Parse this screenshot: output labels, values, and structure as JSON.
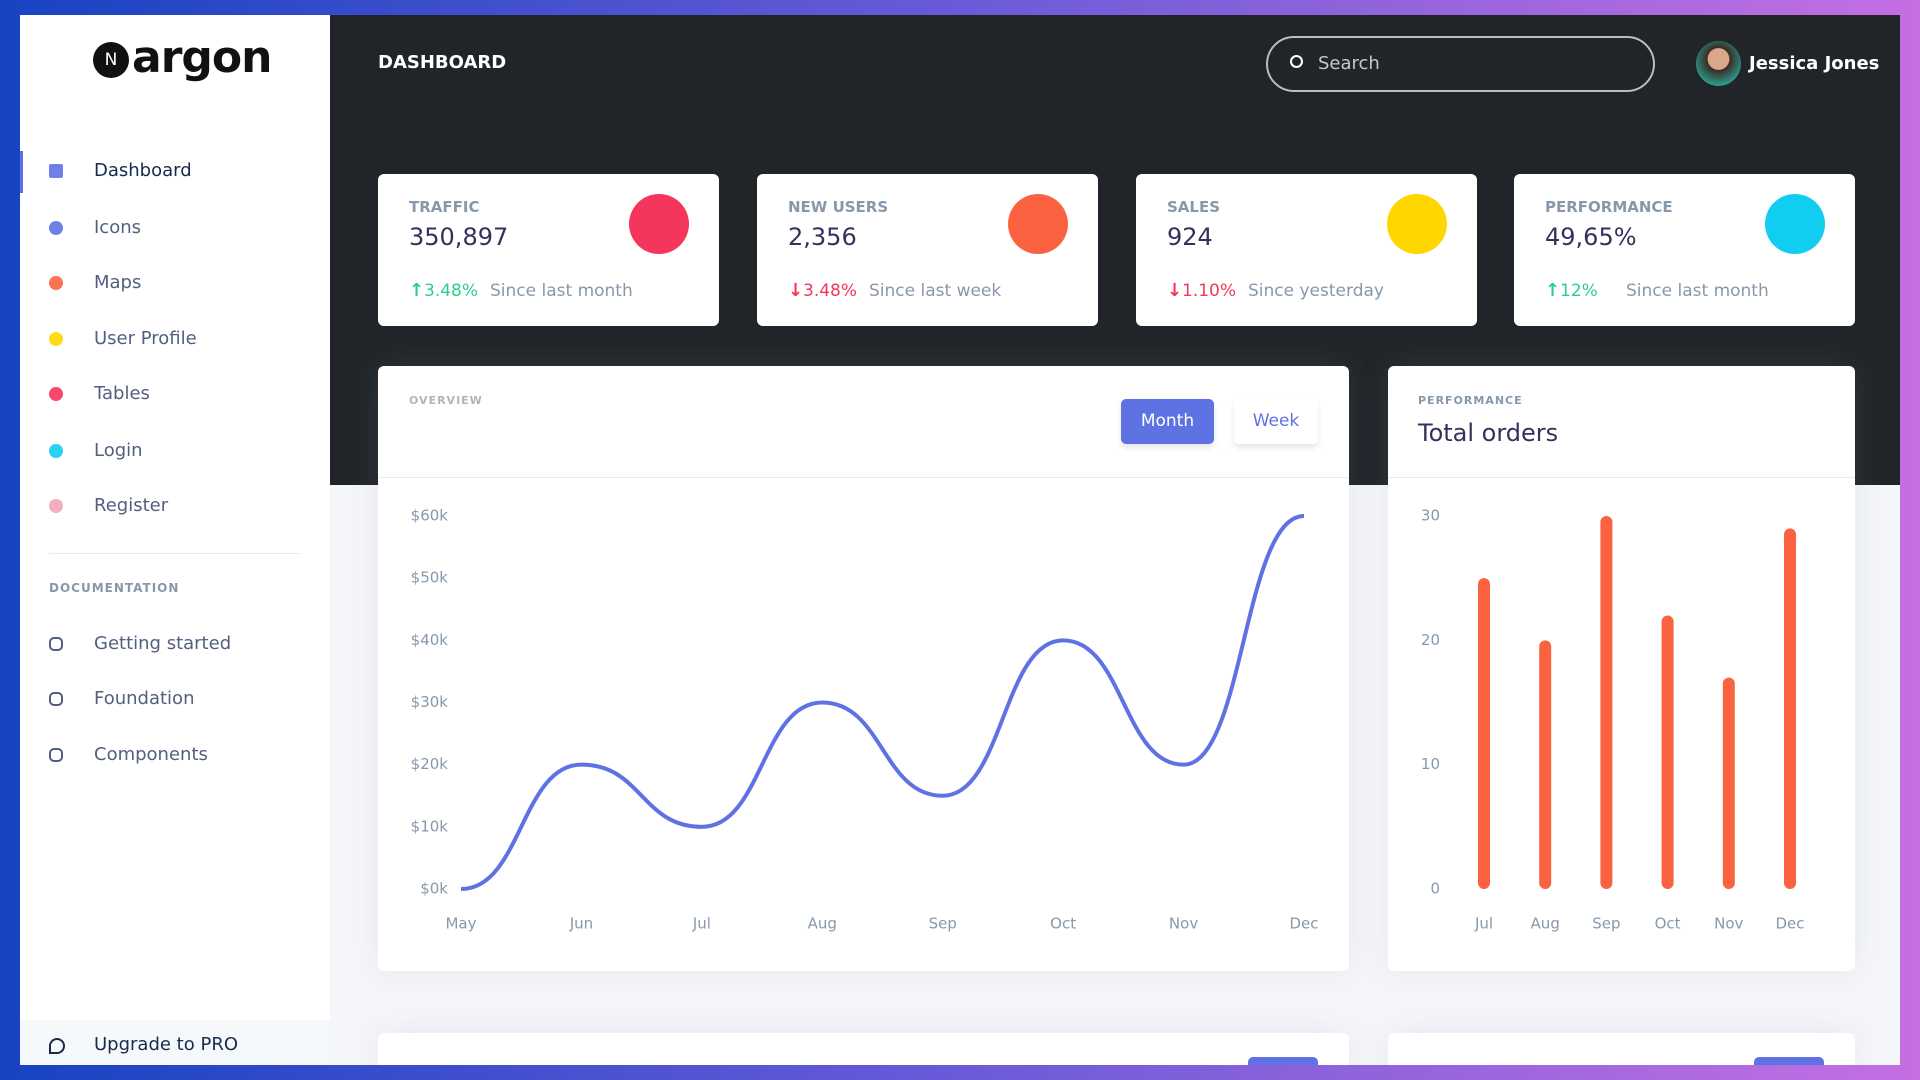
{
  "brand": {
    "mark": "N",
    "name": "argon"
  },
  "sidebar": {
    "items": [
      "Dashboard",
      "Icons",
      "Maps",
      "User Profile",
      "Tables",
      "Login",
      "Register"
    ],
    "item_colors": [
      "#5e72e4",
      "#5e72e4",
      "#fb6340",
      "#ffd600",
      "#f5365c",
      "#11cdef",
      "#f3a4b5"
    ],
    "section_title": "DOCUMENTATION",
    "doc_items": [
      "Getting started",
      "Foundation",
      "Components"
    ],
    "upgrade": "Upgrade to PRO"
  },
  "header": {
    "title": "DASHBOARD",
    "search_placeholder": "Search",
    "user_name": "Jessica Jones"
  },
  "stats": [
    {
      "title": "TRAFFIC",
      "value": "350,897",
      "change": "3.48%",
      "direction": "up",
      "since": "Since last month",
      "icon_color": "#f5365c"
    },
    {
      "title": "NEW USERS",
      "value": "2,356",
      "change": "3.48%",
      "direction": "down",
      "since": "Since last week",
      "icon_color": "#fb6340"
    },
    {
      "title": "SALES",
      "value": "924",
      "change": "1.10%",
      "direction": "down",
      "since": "Since yesterday",
      "icon_color": "#ffd600"
    },
    {
      "title": "PERFORMANCE",
      "value": "49,65%",
      "change": "12%",
      "direction": "up",
      "since": "Since last month",
      "icon_color": "#11cdef"
    }
  ],
  "overview": {
    "subtitle": "OVERVIEW",
    "buttons": [
      "Month",
      "Week"
    ],
    "chart": {
      "type": "line",
      "categories": [
        "May",
        "Jun",
        "Jul",
        "Aug",
        "Sep",
        "Oct",
        "Nov",
        "Dec"
      ],
      "values": [
        0,
        20,
        10,
        30,
        15,
        40,
        20,
        60
      ],
      "color": "#5e72e4",
      "ylim": [
        0,
        60
      ],
      "yticks": [
        {
          "value": 0,
          "label": "$0k"
        },
        {
          "value": 10,
          "label": "$10k"
        },
        {
          "value": 20,
          "label": "$20k"
        },
        {
          "value": 30,
          "label": "$30k"
        },
        {
          "value": 40,
          "label": "$40k"
        },
        {
          "value": 50,
          "label": "$50k"
        },
        {
          "value": 60,
          "label": "$60k"
        }
      ]
    }
  },
  "orders": {
    "subtitle": "PERFORMANCE",
    "title": "Total orders",
    "chart": {
      "type": "bar",
      "categories": [
        "Jul",
        "Aug",
        "Sep",
        "Oct",
        "Nov",
        "Dec"
      ],
      "values": [
        25,
        20,
        30,
        22,
        17,
        29
      ],
      "color": "#fb6340",
      "ylim": [
        0,
        30
      ],
      "yticks": [
        0,
        10,
        20,
        30
      ]
    }
  }
}
